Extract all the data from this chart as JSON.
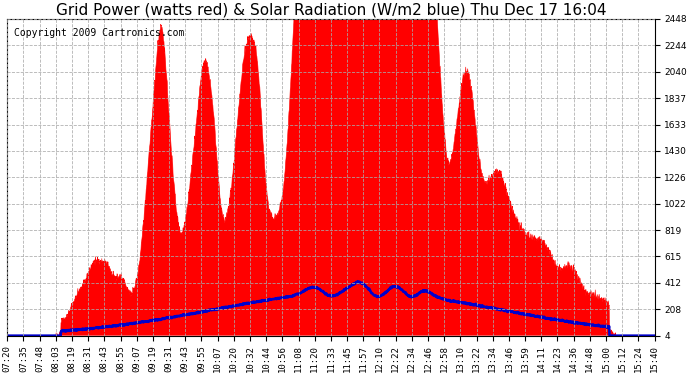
{
  "title": "Grid Power (watts red) & Solar Radiation (W/m2 blue) Thu Dec 17 16:04",
  "copyright": "Copyright 2009 Cartronics.com",
  "yticks": [
    4.3,
    207.9,
    411.5,
    615.1,
    818.7,
    1022.3,
    1225.9,
    1429.5,
    1633.1,
    1836.7,
    2040.3,
    2243.9,
    2447.5
  ],
  "ymin": 4.3,
  "ymax": 2447.5,
  "xtick_labels": [
    "07:20",
    "07:35",
    "07:48",
    "08:03",
    "08:19",
    "08:31",
    "08:43",
    "08:55",
    "09:07",
    "09:19",
    "09:31",
    "09:43",
    "09:55",
    "10:07",
    "10:20",
    "10:32",
    "10:44",
    "10:56",
    "11:08",
    "11:20",
    "11:33",
    "11:45",
    "11:57",
    "12:10",
    "12:22",
    "12:34",
    "12:46",
    "12:58",
    "13:10",
    "13:22",
    "13:34",
    "13:46",
    "13:59",
    "14:11",
    "14:23",
    "14:36",
    "14:48",
    "15:00",
    "15:12",
    "15:24",
    "15:40"
  ],
  "bg_color": "#ffffff",
  "plot_bg_color": "#ffffff",
  "grid_color": "#aaaaaa",
  "red_color": "#ff0000",
  "blue_color": "#0000cc",
  "title_fontsize": 11,
  "copyright_fontsize": 7,
  "tick_fontsize": 6.5,
  "grid_style": "--"
}
